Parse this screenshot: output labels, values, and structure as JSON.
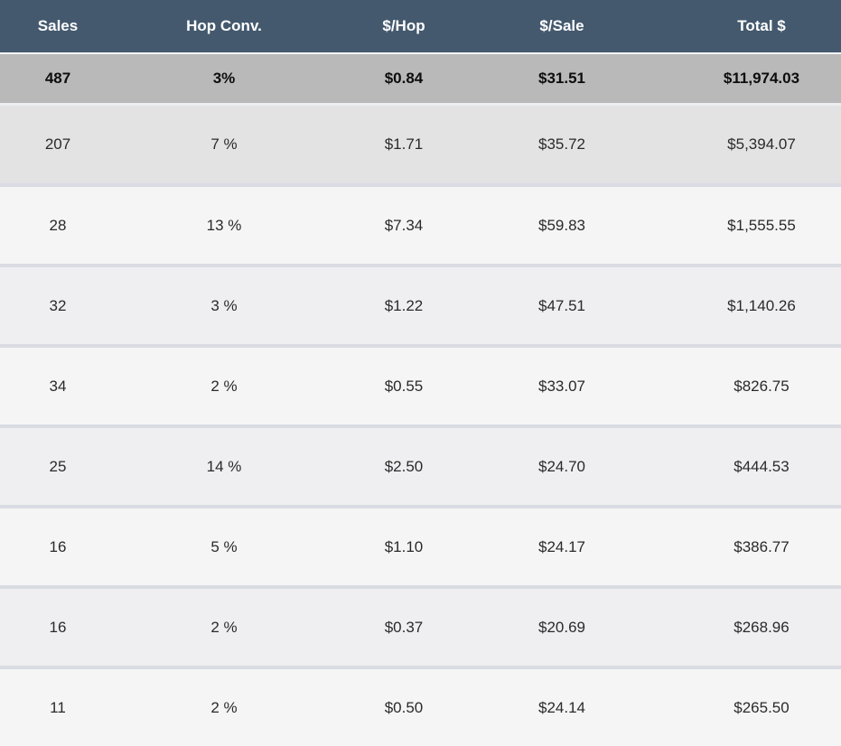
{
  "chart_data": {
    "type": "table",
    "columns": [
      "Sales",
      "Hop Conv.",
      "$/Hop",
      "$/Sale",
      "Total $"
    ],
    "rows": [
      [
        "487",
        "3%",
        "$0.84",
        "$31.51",
        "$11,974.03"
      ],
      [
        "207",
        "7 %",
        "$1.71",
        "$35.72",
        "$5,394.07"
      ],
      [
        "28",
        "13 %",
        "$7.34",
        "$59.83",
        "$1,555.55"
      ],
      [
        "32",
        "3 %",
        "$1.22",
        "$47.51",
        "$1,140.26"
      ],
      [
        "34",
        "2 %",
        "$0.55",
        "$33.07",
        "$826.75"
      ],
      [
        "25",
        "14 %",
        "$2.50",
        "$24.70",
        "$444.53"
      ],
      [
        "16",
        "5 %",
        "$1.10",
        "$24.17",
        "$386.77"
      ],
      [
        "16",
        "2 %",
        "$0.37",
        "$20.69",
        "$268.96"
      ],
      [
        "11",
        "2 %",
        "$0.50",
        "$24.14",
        "$265.50"
      ]
    ],
    "row_emphasis": [
      "selected-bold-gray",
      "shaded",
      "",
      "",
      "",
      "",
      "",
      "",
      ""
    ],
    "layout": {
      "grid": "horizontal-rules-only",
      "alignment": "center",
      "legend": "none"
    }
  },
  "colors": {
    "header_bg": "#44596e",
    "header_text": "#ffffff",
    "selected_row_bg": "#b9b9b9",
    "shaded_row_bg": "#e3e3e4",
    "band_light_bg": "#f5f5f6",
    "band_mid_bg": "#efeff1",
    "row_separator": "#d9dce2",
    "body_text": "#2a2a2a"
  }
}
